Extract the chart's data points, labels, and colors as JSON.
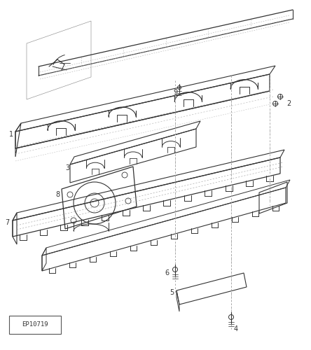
{
  "bg_color": "#ffffff",
  "lc": "#444444",
  "dc": "#333333",
  "gc": "#666666",
  "figsize": [
    4.44,
    5.0
  ],
  "dpi": 100,
  "ep_label": "EP10719"
}
